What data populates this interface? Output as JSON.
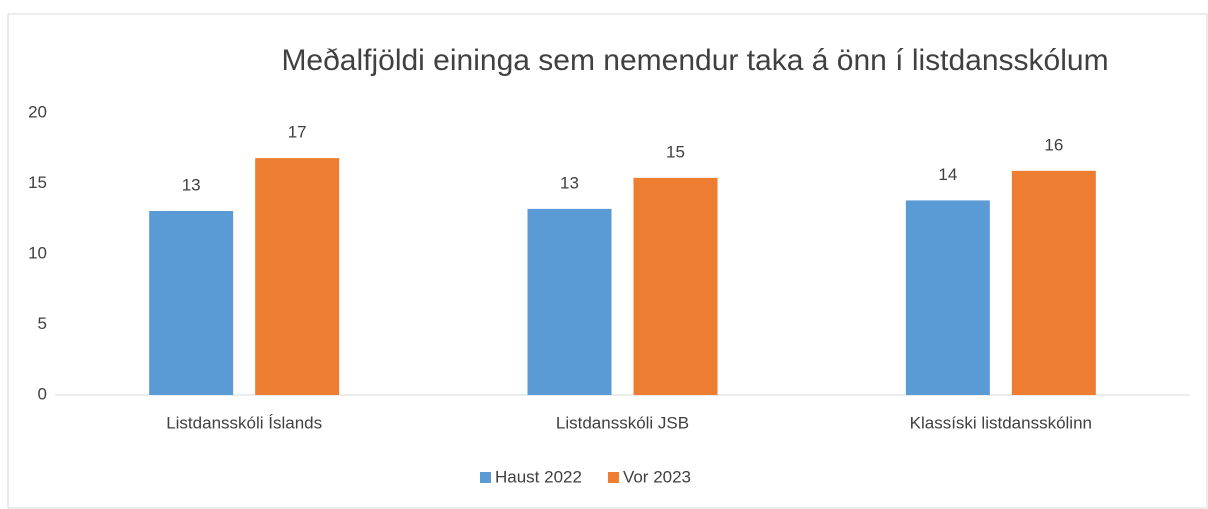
{
  "chart_data": {
    "type": "bar",
    "title": "Meðalfjöldi eininga sem nemendur taka á önn í listdansskólum",
    "categories": [
      "Listdansskóli Íslands",
      "Listdansskóli JSB",
      "Klassíski listdansskólinn"
    ],
    "series": [
      {
        "name": "Haust 2022",
        "color": "#5b9bd5",
        "values": [
          13.05,
          13.2,
          13.8
        ],
        "value_labels": [
          "13",
          "13",
          "14"
        ]
      },
      {
        "name": "Vor 2023",
        "color": "#ed7d31",
        "values": [
          16.8,
          15.4,
          15.9
        ],
        "value_labels": [
          "17",
          "15",
          "16"
        ]
      }
    ],
    "ylim": [
      0,
      20
    ],
    "yticks": [
      0,
      5,
      10,
      15,
      20
    ],
    "grid": false,
    "legend": "bottom"
  }
}
